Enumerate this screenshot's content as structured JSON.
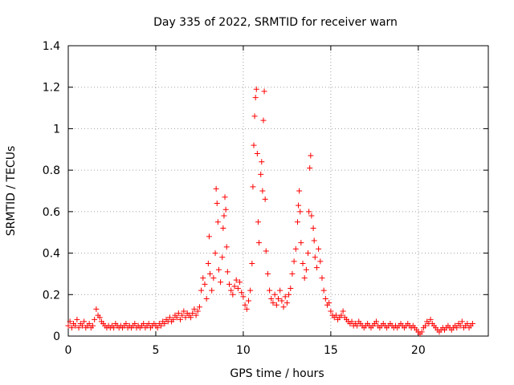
{
  "chart_data": {
    "type": "scatter",
    "title": "Day 335 of 2022, SRMTID for receiver warn",
    "xlabel": "GPS time / hours",
    "ylabel": "SRMTID / TECUs",
    "xlim": [
      0,
      24
    ],
    "ylim": [
      0,
      1.4
    ],
    "xticks": [
      "0",
      "5",
      "10",
      "15",
      "20"
    ],
    "yticks": [
      "0",
      "0.2",
      "0.4",
      "0.6",
      "0.8",
      "1",
      "1.2",
      "1.4"
    ],
    "grid": true,
    "marker": "+",
    "marker_color": "#ff0000",
    "series": [
      {
        "name": "SRMTID",
        "points": [
          [
            0.0,
            0.05
          ],
          [
            0.1,
            0.07
          ],
          [
            0.2,
            0.04
          ],
          [
            0.3,
            0.06
          ],
          [
            0.4,
            0.05
          ],
          [
            0.5,
            0.08
          ],
          [
            0.6,
            0.04
          ],
          [
            0.7,
            0.06
          ],
          [
            0.8,
            0.05
          ],
          [
            0.9,
            0.07
          ],
          [
            1.0,
            0.04
          ],
          [
            1.1,
            0.05
          ],
          [
            1.2,
            0.06
          ],
          [
            1.3,
            0.04
          ],
          [
            1.4,
            0.05
          ],
          [
            1.5,
            0.08
          ],
          [
            1.6,
            0.13
          ],
          [
            1.7,
            0.1
          ],
          [
            1.8,
            0.09
          ],
          [
            1.9,
            0.07
          ],
          [
            2.0,
            0.06
          ],
          [
            2.1,
            0.05
          ],
          [
            2.2,
            0.04
          ],
          [
            2.3,
            0.05
          ],
          [
            2.4,
            0.04
          ],
          [
            2.5,
            0.05
          ],
          [
            2.6,
            0.04
          ],
          [
            2.7,
            0.06
          ],
          [
            2.8,
            0.05
          ],
          [
            2.9,
            0.04
          ],
          [
            3.0,
            0.05
          ],
          [
            3.1,
            0.04
          ],
          [
            3.2,
            0.05
          ],
          [
            3.3,
            0.06
          ],
          [
            3.4,
            0.04
          ],
          [
            3.5,
            0.05
          ],
          [
            3.6,
            0.04
          ],
          [
            3.7,
            0.05
          ],
          [
            3.8,
            0.06
          ],
          [
            3.9,
            0.04
          ],
          [
            4.0,
            0.05
          ],
          [
            4.1,
            0.04
          ],
          [
            4.2,
            0.05
          ],
          [
            4.3,
            0.06
          ],
          [
            4.4,
            0.04
          ],
          [
            4.5,
            0.05
          ],
          [
            4.6,
            0.06
          ],
          [
            4.7,
            0.04
          ],
          [
            4.8,
            0.05
          ],
          [
            4.9,
            0.06
          ],
          [
            5.0,
            0.05
          ],
          [
            5.1,
            0.04
          ],
          [
            5.2,
            0.06
          ],
          [
            5.3,
            0.05
          ],
          [
            5.4,
            0.07
          ],
          [
            5.5,
            0.06
          ],
          [
            5.6,
            0.08
          ],
          [
            5.7,
            0.07
          ],
          [
            5.8,
            0.09
          ],
          [
            5.9,
            0.07
          ],
          [
            6.0,
            0.08
          ],
          [
            6.1,
            0.1
          ],
          [
            6.2,
            0.09
          ],
          [
            6.3,
            0.11
          ],
          [
            6.4,
            0.08
          ],
          [
            6.5,
            0.1
          ],
          [
            6.6,
            0.12
          ],
          [
            6.7,
            0.09
          ],
          [
            6.8,
            0.11
          ],
          [
            6.9,
            0.1
          ],
          [
            7.0,
            0.09
          ],
          [
            7.1,
            0.11
          ],
          [
            7.2,
            0.13
          ],
          [
            7.3,
            0.1
          ],
          [
            7.4,
            0.12
          ],
          [
            7.5,
            0.14
          ],
          [
            7.6,
            0.22
          ],
          [
            7.7,
            0.28
          ],
          [
            7.8,
            0.25
          ],
          [
            7.9,
            0.18
          ],
          [
            8.0,
            0.35
          ],
          [
            8.05,
            0.48
          ],
          [
            8.1,
            0.3
          ],
          [
            8.2,
            0.22
          ],
          [
            8.3,
            0.28
          ],
          [
            8.4,
            0.4
          ],
          [
            8.45,
            0.71
          ],
          [
            8.5,
            0.64
          ],
          [
            8.55,
            0.55
          ],
          [
            8.6,
            0.32
          ],
          [
            8.7,
            0.26
          ],
          [
            8.8,
            0.38
          ],
          [
            8.85,
            0.52
          ],
          [
            8.9,
            0.58
          ],
          [
            8.95,
            0.67
          ],
          [
            9.0,
            0.61
          ],
          [
            9.05,
            0.43
          ],
          [
            9.1,
            0.31
          ],
          [
            9.2,
            0.25
          ],
          [
            9.3,
            0.22
          ],
          [
            9.4,
            0.2
          ],
          [
            9.5,
            0.24
          ],
          [
            9.6,
            0.27
          ],
          [
            9.7,
            0.23
          ],
          [
            9.8,
            0.26
          ],
          [
            9.9,
            0.21
          ],
          [
            10.0,
            0.19
          ],
          [
            10.1,
            0.15
          ],
          [
            10.2,
            0.13
          ],
          [
            10.3,
            0.17
          ],
          [
            10.4,
            0.22
          ],
          [
            10.5,
            0.35
          ],
          [
            10.55,
            0.72
          ],
          [
            10.6,
            0.92
          ],
          [
            10.65,
            1.06
          ],
          [
            10.7,
            1.15
          ],
          [
            10.75,
            1.19
          ],
          [
            10.8,
            0.88
          ],
          [
            10.85,
            0.55
          ],
          [
            10.9,
            0.45
          ],
          [
            11.0,
            0.78
          ],
          [
            11.05,
            0.84
          ],
          [
            11.1,
            0.7
          ],
          [
            11.15,
            1.04
          ],
          [
            11.2,
            1.18
          ],
          [
            11.25,
            0.66
          ],
          [
            11.3,
            0.41
          ],
          [
            11.4,
            0.3
          ],
          [
            11.5,
            0.22
          ],
          [
            11.6,
            0.18
          ],
          [
            11.7,
            0.16
          ],
          [
            11.8,
            0.2
          ],
          [
            11.9,
            0.15
          ],
          [
            12.0,
            0.18
          ],
          [
            12.1,
            0.22
          ],
          [
            12.2,
            0.17
          ],
          [
            12.3,
            0.14
          ],
          [
            12.4,
            0.19
          ],
          [
            12.5,
            0.16
          ],
          [
            12.6,
            0.2
          ],
          [
            12.7,
            0.23
          ],
          [
            12.8,
            0.3
          ],
          [
            12.9,
            0.36
          ],
          [
            13.0,
            0.42
          ],
          [
            13.1,
            0.55
          ],
          [
            13.15,
            0.63
          ],
          [
            13.2,
            0.7
          ],
          [
            13.25,
            0.6
          ],
          [
            13.3,
            0.45
          ],
          [
            13.4,
            0.35
          ],
          [
            13.5,
            0.28
          ],
          [
            13.6,
            0.32
          ],
          [
            13.7,
            0.4
          ],
          [
            13.75,
            0.6
          ],
          [
            13.8,
            0.81
          ],
          [
            13.85,
            0.87
          ],
          [
            13.9,
            0.58
          ],
          [
            14.0,
            0.52
          ],
          [
            14.05,
            0.46
          ],
          [
            14.1,
            0.38
          ],
          [
            14.2,
            0.33
          ],
          [
            14.3,
            0.42
          ],
          [
            14.4,
            0.36
          ],
          [
            14.5,
            0.28
          ],
          [
            14.6,
            0.22
          ],
          [
            14.7,
            0.18
          ],
          [
            14.8,
            0.15
          ],
          [
            14.9,
            0.16
          ],
          [
            15.0,
            0.12
          ],
          [
            15.1,
            0.1
          ],
          [
            15.2,
            0.09
          ],
          [
            15.3,
            0.1
          ],
          [
            15.4,
            0.08
          ],
          [
            15.5,
            0.09
          ],
          [
            15.6,
            0.1
          ],
          [
            15.7,
            0.12
          ],
          [
            15.8,
            0.09
          ],
          [
            15.9,
            0.08
          ],
          [
            16.0,
            0.07
          ],
          [
            16.1,
            0.06
          ],
          [
            16.2,
            0.07
          ],
          [
            16.3,
            0.05
          ],
          [
            16.4,
            0.06
          ],
          [
            16.5,
            0.05
          ],
          [
            16.6,
            0.07
          ],
          [
            16.7,
            0.06
          ],
          [
            16.8,
            0.05
          ],
          [
            16.9,
            0.04
          ],
          [
            17.0,
            0.05
          ],
          [
            17.1,
            0.06
          ],
          [
            17.2,
            0.05
          ],
          [
            17.3,
            0.04
          ],
          [
            17.4,
            0.05
          ],
          [
            17.5,
            0.06
          ],
          [
            17.6,
            0.07
          ],
          [
            17.7,
            0.05
          ],
          [
            17.8,
            0.04
          ],
          [
            17.9,
            0.05
          ],
          [
            18.0,
            0.06
          ],
          [
            18.1,
            0.05
          ],
          [
            18.2,
            0.04
          ],
          [
            18.3,
            0.05
          ],
          [
            18.4,
            0.06
          ],
          [
            18.5,
            0.05
          ],
          [
            18.6,
            0.04
          ],
          [
            18.7,
            0.05
          ],
          [
            18.8,
            0.04
          ],
          [
            18.9,
            0.05
          ],
          [
            19.0,
            0.06
          ],
          [
            19.1,
            0.05
          ],
          [
            19.2,
            0.04
          ],
          [
            19.3,
            0.05
          ],
          [
            19.4,
            0.06
          ],
          [
            19.5,
            0.05
          ],
          [
            19.6,
            0.04
          ],
          [
            19.7,
            0.05
          ],
          [
            19.8,
            0.04
          ],
          [
            19.9,
            0.03
          ],
          [
            20.0,
            0.02
          ],
          [
            20.1,
            0.01
          ],
          [
            20.2,
            0.02
          ],
          [
            20.3,
            0.04
          ],
          [
            20.4,
            0.05
          ],
          [
            20.5,
            0.07
          ],
          [
            20.6,
            0.06
          ],
          [
            20.7,
            0.08
          ],
          [
            20.8,
            0.06
          ],
          [
            20.9,
            0.05
          ],
          [
            21.0,
            0.04
          ],
          [
            21.1,
            0.03
          ],
          [
            21.2,
            0.02
          ],
          [
            21.3,
            0.03
          ],
          [
            21.4,
            0.04
          ],
          [
            21.5,
            0.03
          ],
          [
            21.6,
            0.04
          ],
          [
            21.7,
            0.05
          ],
          [
            21.8,
            0.04
          ],
          [
            21.9,
            0.03
          ],
          [
            22.0,
            0.04
          ],
          [
            22.1,
            0.05
          ],
          [
            22.2,
            0.04
          ],
          [
            22.3,
            0.06
          ],
          [
            22.4,
            0.05
          ],
          [
            22.5,
            0.07
          ],
          [
            22.6,
            0.04
          ],
          [
            22.7,
            0.05
          ],
          [
            22.8,
            0.06
          ],
          [
            22.9,
            0.04
          ],
          [
            23.0,
            0.05
          ],
          [
            23.1,
            0.06
          ]
        ]
      }
    ]
  }
}
